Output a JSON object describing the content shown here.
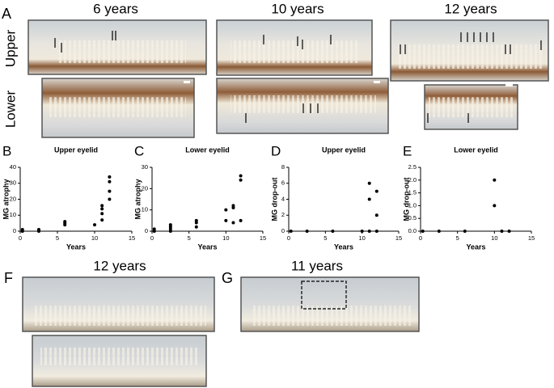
{
  "panels": {
    "A": {
      "label": "A",
      "titles": [
        "6 years",
        "10 years",
        "12 years"
      ],
      "row_labels": [
        "Upper",
        "Lower"
      ]
    },
    "F": {
      "label": "F",
      "title": "12 years"
    },
    "G": {
      "label": "G",
      "title": "11 years"
    }
  },
  "chart_data": [
    {
      "type": "scatter",
      "panel": "B",
      "title": "Upper eyelid",
      "x_label": "Years",
      "y_label": "MG atrophy",
      "x": [
        0.3,
        0.3,
        2.5,
        2.5,
        6,
        6,
        6,
        10,
        11,
        11,
        11,
        11,
        12,
        12,
        12,
        12
      ],
      "values": [
        0,
        1,
        0,
        1,
        4,
        5,
        6,
        4,
        7,
        11,
        14,
        16,
        20,
        25,
        31,
        34
      ],
      "color": "#000000",
      "xlim": [
        0,
        15
      ],
      "xticks": [
        0,
        5,
        10,
        15
      ],
      "ylim": [
        0,
        40
      ],
      "yticks": [
        0,
        10,
        20,
        30,
        40
      ]
    },
    {
      "type": "scatter",
      "panel": "C",
      "title": "Lower eyelid",
      "x_label": "Years",
      "y_label": "MG atrophy",
      "x": [
        0.3,
        0.3,
        2.5,
        2.5,
        2.5,
        2.5,
        6,
        6,
        6,
        10,
        10,
        11,
        11,
        11,
        12,
        12,
        12
      ],
      "values": [
        0,
        1,
        0,
        1,
        2,
        3,
        2,
        4,
        5,
        5,
        10,
        4,
        11,
        12,
        5,
        24,
        26
      ],
      "color": "#000000",
      "xlim": [
        0,
        15
      ],
      "xticks": [
        0,
        5,
        10,
        15
      ],
      "ylim": [
        0,
        30
      ],
      "yticks": [
        0,
        10,
        20,
        30
      ]
    },
    {
      "type": "scatter",
      "panel": "D",
      "title": "Upper eyelid",
      "x_label": "Years",
      "y_label": "MG drop-out",
      "x": [
        0.3,
        2.5,
        6,
        10,
        11,
        11,
        11,
        12,
        12,
        12
      ],
      "values": [
        0,
        0,
        0,
        0,
        0,
        4,
        6,
        0,
        2,
        5
      ],
      "color": "#000000",
      "xlim": [
        0,
        15
      ],
      "xticks": [
        0,
        5,
        10,
        15
      ],
      "ylim": [
        0,
        8
      ],
      "yticks": [
        0,
        2,
        4,
        6,
        8
      ]
    },
    {
      "type": "scatter",
      "panel": "E",
      "title": "Lower eyelid",
      "x_label": "Years",
      "y_label": "MG drop-out",
      "x": [
        0.3,
        2.5,
        6,
        10,
        10,
        11,
        12
      ],
      "values": [
        0,
        0,
        0,
        1,
        2,
        0,
        0
      ],
      "color": "#000000",
      "xlim": [
        0,
        15
      ],
      "xticks": [
        0,
        5,
        10,
        15
      ],
      "ylim": [
        0,
        2.5
      ],
      "yticks": [
        {
          "value": 0,
          "label": "0.0"
        },
        0.5,
        {
          "value": 1,
          "label": "1.0"
        },
        1.5,
        {
          "value": 2,
          "label": "2.0"
        },
        2.5
      ]
    }
  ]
}
